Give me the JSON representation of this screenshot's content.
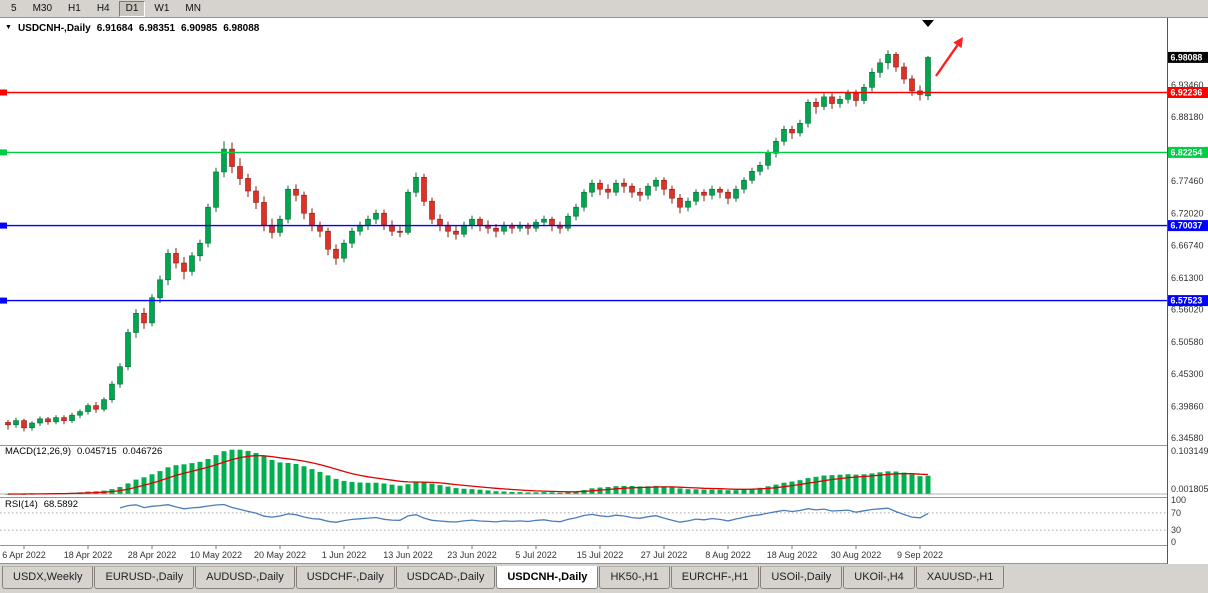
{
  "toolbar": {
    "timeframes": [
      {
        "label": "5",
        "active": false
      },
      {
        "label": "M30",
        "active": false
      },
      {
        "label": "H1",
        "active": false
      },
      {
        "label": "H4",
        "active": false
      },
      {
        "label": "D1",
        "active": true
      },
      {
        "label": "W1",
        "active": false
      },
      {
        "label": "MN",
        "active": false
      }
    ]
  },
  "chart_title": {
    "symbol": "USDCNH-,Daily",
    "open": "6.91684",
    "high": "6.98351",
    "low": "6.90985",
    "close": "6.98088"
  },
  "indicator_labels": {
    "macd": {
      "name": "MACD(12,26,9)",
      "value": "0.045715",
      "signal": "0.046726"
    },
    "rsi": {
      "name": "RSI(14)",
      "value": "68.5892"
    }
  },
  "tabs": [
    {
      "label": "USDX,Weekly",
      "active": false
    },
    {
      "label": "EURUSD-,Daily",
      "active": false
    },
    {
      "label": "AUDUSD-,Daily",
      "active": false
    },
    {
      "label": "USDCHF-,Daily",
      "active": false
    },
    {
      "label": "USDCAD-,Daily",
      "active": false
    },
    {
      "label": "USDCNH-,Daily",
      "active": true
    },
    {
      "label": "HK50-,H1",
      "active": false
    },
    {
      "label": "EURCHF-,H1",
      "active": false
    },
    {
      "label": "USOil-,Daily",
      "active": false
    },
    {
      "label": "UKOil-,H4",
      "active": false
    },
    {
      "label": "XAUUSD-,H1",
      "active": false
    }
  ],
  "chart_data": {
    "type": "candlestick",
    "symbol": "USDCNH-",
    "period": "Daily",
    "y_range": [
      6.336,
      7.045
    ],
    "y_axis_labels": [
      "6.93460",
      "6.88180",
      "6.77460",
      "6.72020",
      "6.66740",
      "6.61300",
      "6.56020",
      "6.50580",
      "6.45300",
      "6.39860",
      "6.34580"
    ],
    "x_ticks": [
      {
        "i": 2,
        "label": "6 Apr 2022"
      },
      {
        "i": 10,
        "label": "18 Apr 2022"
      },
      {
        "i": 18,
        "label": "28 Apr 2022"
      },
      {
        "i": 26,
        "label": "10 May 2022"
      },
      {
        "i": 34,
        "label": "20 May 2022"
      },
      {
        "i": 42,
        "label": "1 Jun 2022"
      },
      {
        "i": 50,
        "label": "13 Jun 2022"
      },
      {
        "i": 58,
        "label": "23 Jun 2022"
      },
      {
        "i": 66,
        "label": "5 Jul 2022"
      },
      {
        "i": 74,
        "label": "15 Jul 2022"
      },
      {
        "i": 82,
        "label": "27 Jul 2022"
      },
      {
        "i": 90,
        "label": "8 Aug 2022"
      },
      {
        "i": 98,
        "label": "18 Aug 2022"
      },
      {
        "i": 106,
        "label": "30 Aug 2022"
      },
      {
        "i": 114,
        "label": "9 Sep 2022"
      }
    ],
    "price_lines": [
      {
        "label": "6.98088",
        "price": 6.98088,
        "color": "#000000",
        "kind": "current-price"
      },
      {
        "label": "6.92236",
        "price": 6.92236,
        "color": "#FF0000",
        "kind": "horizontal-line"
      },
      {
        "label": "6.82254",
        "price": 6.82254,
        "color": "#00CC44",
        "kind": "horizontal-line"
      },
      {
        "label": "6.70037",
        "price": 6.70037,
        "color": "#0000FF",
        "kind": "horizontal-line"
      },
      {
        "label": "6.57523",
        "price": 6.57523,
        "color": "#0000FF",
        "kind": "horizontal-line"
      }
    ],
    "candles": [
      [
        6.372,
        6.376,
        6.36,
        6.368
      ],
      [
        6.368,
        6.38,
        6.363,
        6.375
      ],
      [
        6.375,
        6.378,
        6.357,
        6.363
      ],
      [
        6.363,
        6.374,
        6.358,
        6.371
      ],
      [
        6.371,
        6.382,
        6.366,
        6.378
      ],
      [
        6.378,
        6.381,
        6.368,
        6.373
      ],
      [
        6.373,
        6.384,
        6.369,
        6.38
      ],
      [
        6.38,
        6.384,
        6.369,
        6.375
      ],
      [
        6.375,
        6.388,
        6.371,
        6.384
      ],
      [
        6.384,
        6.394,
        6.379,
        6.39
      ],
      [
        6.39,
        6.404,
        6.385,
        6.4
      ],
      [
        6.4,
        6.406,
        6.388,
        6.394
      ],
      [
        6.394,
        6.414,
        6.39,
        6.41
      ],
      [
        6.41,
        6.441,
        6.405,
        6.436
      ],
      [
        6.436,
        6.471,
        6.43,
        6.465
      ],
      [
        6.465,
        6.528,
        6.459,
        6.522
      ],
      [
        6.522,
        6.561,
        6.513,
        6.554
      ],
      [
        6.554,
        6.563,
        6.528,
        6.538
      ],
      [
        6.538,
        6.586,
        6.532,
        6.58
      ],
      [
        6.58,
        6.617,
        6.571,
        6.61
      ],
      [
        6.61,
        6.661,
        6.601,
        6.654
      ],
      [
        6.654,
        6.663,
        6.629,
        6.638
      ],
      [
        6.638,
        6.648,
        6.611,
        6.624
      ],
      [
        6.624,
        6.656,
        6.617,
        6.65
      ],
      [
        6.65,
        6.677,
        6.641,
        6.671
      ],
      [
        6.671,
        6.737,
        6.664,
        6.731
      ],
      [
        6.731,
        6.797,
        6.723,
        6.79
      ],
      [
        6.79,
        6.841,
        6.781,
        6.828
      ],
      [
        6.828,
        6.839,
        6.788,
        6.799
      ],
      [
        6.799,
        6.813,
        6.768,
        6.779
      ],
      [
        6.779,
        6.787,
        6.748,
        6.758
      ],
      [
        6.758,
        6.766,
        6.728,
        6.739
      ],
      [
        6.739,
        6.749,
        6.691,
        6.701
      ],
      [
        6.701,
        6.712,
        6.679,
        6.689
      ],
      [
        6.689,
        6.717,
        6.682,
        6.711
      ],
      [
        6.711,
        6.767,
        6.704,
        6.761
      ],
      [
        6.761,
        6.769,
        6.741,
        6.751
      ],
      [
        6.751,
        6.757,
        6.711,
        6.721
      ],
      [
        6.721,
        6.729,
        6.691,
        6.7
      ],
      [
        6.7,
        6.707,
        6.681,
        6.691
      ],
      [
        6.691,
        6.697,
        6.651,
        6.661
      ],
      [
        6.661,
        6.669,
        6.635,
        6.646
      ],
      [
        6.646,
        6.677,
        6.639,
        6.671
      ],
      [
        6.671,
        6.697,
        6.663,
        6.691
      ],
      [
        6.691,
        6.707,
        6.684,
        6.701
      ],
      [
        6.701,
        6.717,
        6.693,
        6.711
      ],
      [
        6.711,
        6.727,
        6.703,
        6.721
      ],
      [
        6.721,
        6.727,
        6.693,
        6.701
      ],
      [
        6.701,
        6.709,
        6.683,
        6.691
      ],
      [
        6.691,
        6.699,
        6.681,
        6.689
      ],
      [
        6.689,
        6.761,
        6.685,
        6.756
      ],
      [
        6.756,
        6.789,
        6.748,
        6.781
      ],
      [
        6.781,
        6.787,
        6.733,
        6.741
      ],
      [
        6.741,
        6.747,
        6.703,
        6.711
      ],
      [
        6.711,
        6.719,
        6.691,
        6.701
      ],
      [
        6.701,
        6.707,
        6.681,
        6.691
      ],
      [
        6.691,
        6.701,
        6.677,
        6.686
      ],
      [
        6.686,
        6.707,
        6.681,
        6.701
      ],
      [
        6.701,
        6.717,
        6.694,
        6.711
      ],
      [
        6.711,
        6.715,
        6.691,
        6.701
      ],
      [
        6.701,
        6.709,
        6.687,
        6.696
      ],
      [
        6.696,
        6.703,
        6.681,
        6.691
      ],
      [
        6.691,
        6.707,
        6.685,
        6.701
      ],
      [
        6.701,
        6.705,
        6.687,
        6.696
      ],
      [
        6.696,
        6.707,
        6.69,
        6.701
      ],
      [
        6.701,
        6.705,
        6.685,
        6.696
      ],
      [
        6.696,
        6.711,
        6.69,
        6.706
      ],
      [
        6.706,
        6.717,
        6.699,
        6.711
      ],
      [
        6.711,
        6.715,
        6.691,
        6.701
      ],
      [
        6.701,
        6.707,
        6.687,
        6.696
      ],
      [
        6.696,
        6.721,
        6.691,
        6.716
      ],
      [
        6.716,
        6.737,
        6.709,
        6.731
      ],
      [
        6.731,
        6.761,
        6.724,
        6.756
      ],
      [
        6.756,
        6.777,
        6.748,
        6.771
      ],
      [
        6.771,
        6.777,
        6.751,
        6.761
      ],
      [
        6.761,
        6.769,
        6.745,
        6.756
      ],
      [
        6.756,
        6.777,
        6.75,
        6.771
      ],
      [
        6.771,
        6.779,
        6.755,
        6.766
      ],
      [
        6.766,
        6.771,
        6.747,
        6.756
      ],
      [
        6.756,
        6.763,
        6.741,
        6.751
      ],
      [
        6.751,
        6.771,
        6.744,
        6.766
      ],
      [
        6.766,
        6.781,
        6.758,
        6.776
      ],
      [
        6.776,
        6.781,
        6.751,
        6.761
      ],
      [
        6.761,
        6.767,
        6.737,
        6.746
      ],
      [
        6.746,
        6.753,
        6.721,
        6.731
      ],
      [
        6.731,
        6.747,
        6.724,
        6.741
      ],
      [
        6.741,
        6.761,
        6.734,
        6.756
      ],
      [
        6.756,
        6.761,
        6.741,
        6.751
      ],
      [
        6.751,
        6.767,
        6.744,
        6.761
      ],
      [
        6.761,
        6.765,
        6.746,
        6.756
      ],
      [
        6.756,
        6.761,
        6.736,
        6.746
      ],
      [
        6.746,
        6.767,
        6.74,
        6.761
      ],
      [
        6.761,
        6.781,
        6.754,
        6.776
      ],
      [
        6.776,
        6.797,
        6.77,
        6.791
      ],
      [
        6.791,
        6.807,
        6.784,
        6.801
      ],
      [
        6.801,
        6.827,
        6.794,
        6.821
      ],
      [
        6.821,
        6.847,
        6.814,
        6.841
      ],
      [
        6.841,
        6.867,
        6.834,
        6.861
      ],
      [
        6.861,
        6.867,
        6.845,
        6.855
      ],
      [
        6.855,
        6.877,
        6.849,
        6.871
      ],
      [
        6.871,
        6.911,
        6.864,
        6.906
      ],
      [
        6.906,
        6.913,
        6.887,
        6.899
      ],
      [
        6.899,
        6.921,
        6.893,
        6.915
      ],
      [
        6.915,
        6.921,
        6.895,
        6.904
      ],
      [
        6.904,
        6.917,
        6.897,
        6.911
      ],
      [
        6.911,
        6.927,
        6.904,
        6.921
      ],
      [
        6.921,
        6.927,
        6.899,
        6.909
      ],
      [
        6.909,
        6.937,
        6.903,
        6.931
      ],
      [
        6.931,
        6.963,
        6.924,
        6.956
      ],
      [
        6.956,
        6.979,
        6.947,
        6.972
      ],
      [
        6.972,
        6.993,
        6.961,
        6.986
      ],
      [
        6.986,
        6.99,
        6.957,
        6.965
      ],
      [
        6.965,
        6.972,
        6.937,
        6.945
      ],
      [
        6.945,
        6.951,
        6.917,
        6.925
      ],
      [
        6.925,
        6.934,
        6.909,
        6.919
      ],
      [
        6.91684,
        6.98351,
        6.90985,
        6.98088
      ]
    ],
    "macd": {
      "fast": 12,
      "slow": 26,
      "signal": 9,
      "current": 0.045715,
      "signal_current": 0.046726,
      "scale_labels": [
        "0.103149",
        "0.001805"
      ]
    },
    "rsi": {
      "period": 14,
      "current": 68.5892,
      "levels": [
        70,
        30
      ],
      "scale_labels": [
        "100",
        "70",
        "30",
        "0"
      ]
    },
    "colors": {
      "up": "#00A550",
      "up_border": "#0B6B35",
      "down": "#DC3228",
      "down_border": "#8B1A10",
      "macd_hist": "#00B050",
      "macd_signal": "#E00000",
      "rsi_line": "#4A7EBB",
      "axis_text": "#333333"
    },
    "annotations": [
      {
        "type": "arrow-up-right",
        "color": "#FF2020"
      },
      {
        "type": "chart-shift-marker",
        "color": "#000000"
      }
    ]
  }
}
